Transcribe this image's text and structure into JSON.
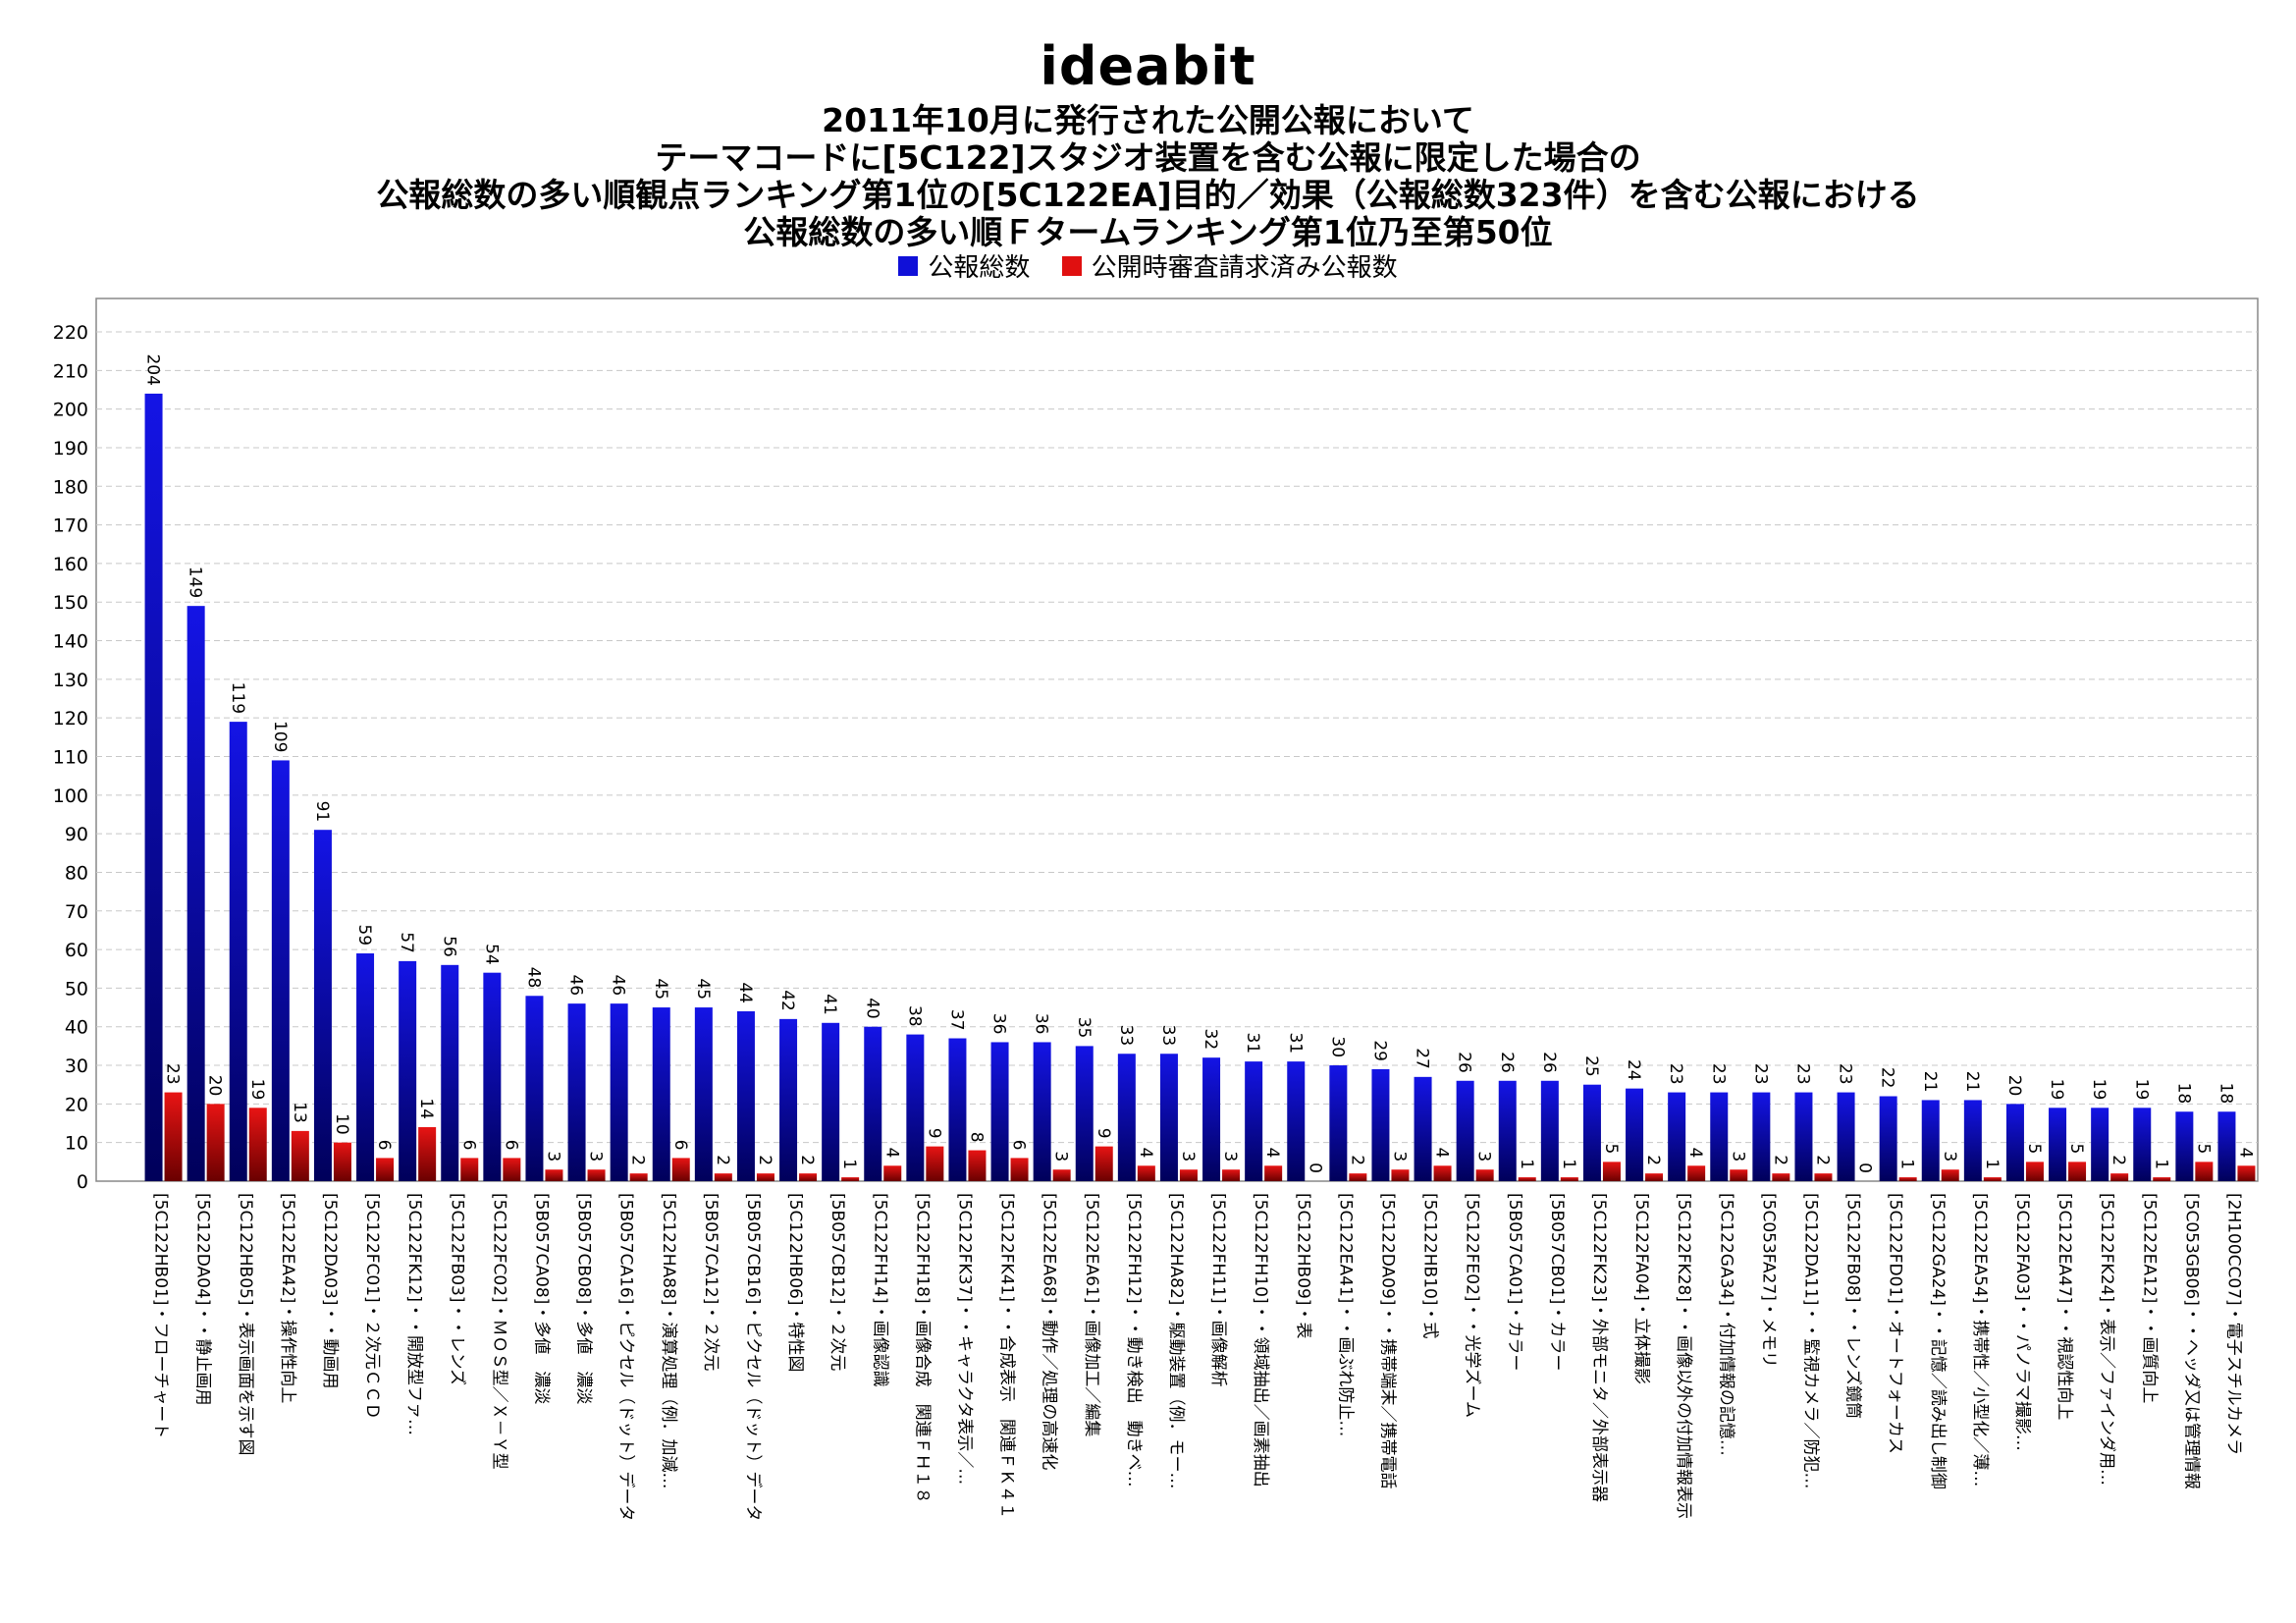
{
  "header": {
    "logo": "ideabit",
    "title_lines": [
      "2011年10月に発行された公開公報において",
      "テーマコードに[5C122]スタジオ装置を含む公報に限定した場合の",
      "公報総数の多い順観点ランキング第1位の[5C122EA]目的／効果（公報総数323件）を含む公報における",
      "公報総数の多い順Ｆタームランキング第1位乃至第50位"
    ]
  },
  "colors": {
    "series1": "#1010d8",
    "series1_dark": "#000060",
    "series2": "#e01010",
    "series2_dark": "#600000",
    "grid": "#c8c8c8"
  },
  "chart_data": {
    "type": "bar",
    "title": "公報総数の多い順Ｆタームランキング第1位乃至第50位",
    "ylim": [
      0,
      220
    ],
    "yticks": [
      0,
      10,
      20,
      30,
      40,
      50,
      60,
      70,
      80,
      90,
      100,
      110,
      120,
      130,
      140,
      150,
      160,
      170,
      180,
      190,
      200,
      210,
      220
    ],
    "grid": true,
    "legend_position": "top-center",
    "categories": [
      "[5C122HB01]・フローチャート",
      "[5C122DA04]・・静止画用",
      "[5C122HB05]・表示画面を示す図",
      "[5C122EA42]・操作性向上",
      "[5C122DA03]・・動画用",
      "[5C122FC01]・２次元ＣＣＤ",
      "[5C122FK12]・・開放型ファ…",
      "[5C122FB03]・・レンズ",
      "[5C122FC02]・ＭＯＳ型／Ｘ－Ｙ型",
      "[5B057CA08]・多値　濃淡",
      "[5B057CB08]・多値　濃淡",
      "[5B057CA16]・ピクセル（ドット）データ",
      "[5C122HA88]・演算処理（例．加減…",
      "[5B057CA12]・２次元",
      "[5B057CB16]・ピクセル（ドット）データ",
      "[5C122HB06]・特性図",
      "[5B057CB12]・２次元",
      "[5C122FH14]・画像認識",
      "[5C122FH18]・画像合成　関連ＦＨ１８",
      "[5C122FK37]・・キャラクタ表示／…",
      "[5C122FK41]・・合成表示　関連ＦＫ４１",
      "[5C122EA68]・動作／処理の高速化",
      "[5C122EA61]・画像加工／編集",
      "[5C122FH12]・・動き検出　動きベ…",
      "[5C122HA82]・駆動装置（例．モー…",
      "[5C122FH11]・画像解析",
      "[5C122FH10]・・領域抽出／画素抽出",
      "[5C122HB09]・表",
      "[5C122EA41]・・画ぶれ防止…",
      "[5C122DA09]・・携帯端末／携帯電話",
      "[5C122HB10]・式",
      "[5C122FE02]・・光学ズーム",
      "[5B057CA01]・カラー",
      "[5B057CB01]・カラー",
      "[5C122FK23]・外部モニタ／外部表示器",
      "[5C122FA04]・立体撮影",
      "[5C122FK28]・・画像以外の付加情報表示",
      "[5C122GA34]・付加情報の記憶…",
      "[5C053FA27]・メモリ",
      "[5C122DA11]・・監視カメラ／防犯…",
      "[5C122FB08]・・レンズ鏡筒",
      "[5C122FD01]・オートフォーカス",
      "[5C122GA24]・・記憶／読み出し制御",
      "[5C122EA54]・携帯性／小型化／薄…",
      "[5C122FA03]・・パノラマ撮影…",
      "[5C122EA47]・・視認性向上",
      "[5C122FK24]・表示／ファインダ用…",
      "[5C122EA12]・・画質向上",
      "[5C053GB06]・・ヘッダ又は管理情報",
      "[2H100CC07]・電子スチルカメラ"
    ],
    "series": [
      {
        "name": "公報総数",
        "values": [
          204,
          149,
          119,
          109,
          91,
          59,
          57,
          56,
          54,
          48,
          46,
          46,
          45,
          45,
          44,
          42,
          41,
          40,
          38,
          37,
          36,
          36,
          35,
          33,
          33,
          32,
          31,
          31,
          30,
          29,
          27,
          26,
          26,
          26,
          25,
          24,
          23,
          23,
          23,
          23,
          23,
          22,
          21,
          21,
          20,
          19,
          19,
          19,
          18,
          18
        ]
      },
      {
        "name": "公開時審査請求済み公報数",
        "values": [
          23,
          20,
          19,
          13,
          10,
          6,
          14,
          6,
          6,
          3,
          3,
          2,
          6,
          2,
          2,
          2,
          1,
          4,
          9,
          8,
          6,
          3,
          9,
          4,
          3,
          3,
          4,
          0,
          2,
          3,
          4,
          3,
          1,
          1,
          5,
          2,
          4,
          3,
          2,
          2,
          0,
          1,
          3,
          1,
          5,
          5,
          2,
          1,
          5,
          4
        ]
      }
    ]
  }
}
